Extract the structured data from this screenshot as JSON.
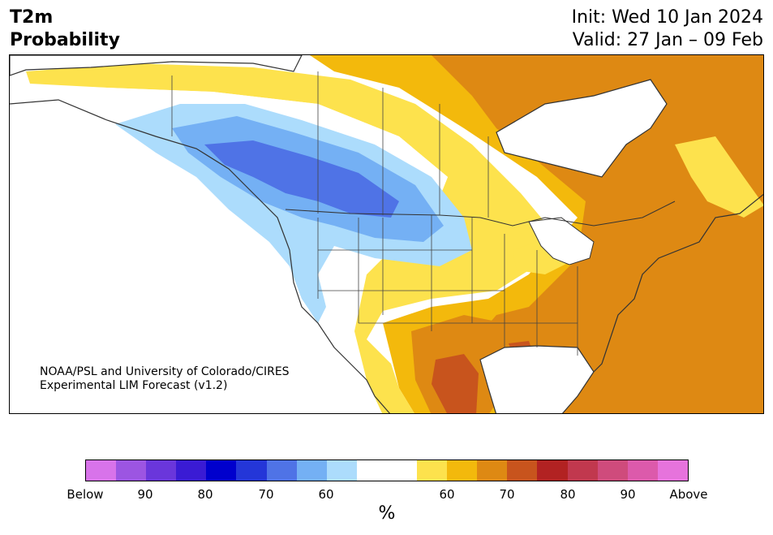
{
  "header": {
    "title_line1": "T2m",
    "title_line2": "Probability",
    "init": "Init: Wed 10 Jan 2024",
    "valid": "Valid: 27 Jan – 09 Feb"
  },
  "map": {
    "credit_line1": "NOAA/PSL and University of Colorado/CIRES",
    "credit_line2": "Experimental LIM Forecast (v1.2)",
    "colors": {
      "below_60": "#acdcfc",
      "below_70": "#74b0f4",
      "below_80": "#4f73e6",
      "above_60": "#fde24d",
      "above_70": "#f3b90c",
      "above_80": "#de8913",
      "above_90": "#c8541d",
      "land_border": "#333333"
    }
  },
  "colorbar": {
    "units": "%",
    "swatches": [
      "#d873ea",
      "#9c55e2",
      "#6a36db",
      "#3a1bd4",
      "#0000cd",
      "#2436d8",
      "#4f73e6",
      "#74b0f4",
      "#acdcfc",
      "#ffffff",
      "#ffffff",
      "#fde24d",
      "#f3b90c",
      "#de8913",
      "#c8541d",
      "#b22222",
      "#c1384e",
      "#cf4b7c",
      "#dc5aab",
      "#e673dc"
    ],
    "ticks": [
      "Below",
      "90",
      "80",
      "70",
      "60",
      "60",
      "70",
      "80",
      "90",
      "Above"
    ]
  }
}
